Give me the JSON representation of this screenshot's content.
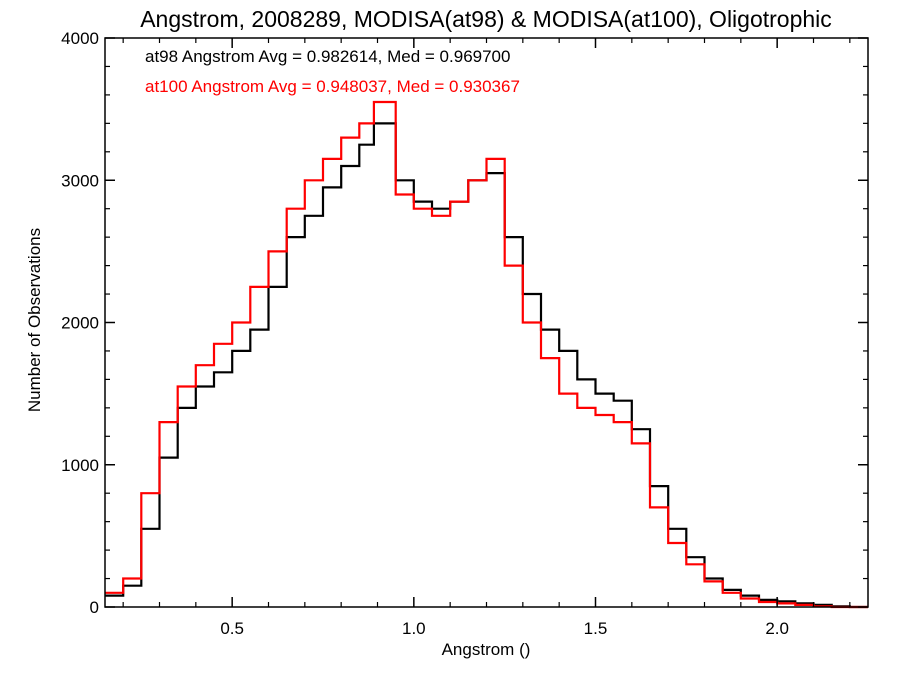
{
  "chart_data": {
    "type": "line",
    "title": "Angstrom, 2008289, MODISA(at98) & MODISA(at100), Oligotrophic",
    "xlabel": "Angstrom ()",
    "ylabel": "Number of Observations",
    "xlim": [
      0.15,
      2.25
    ],
    "ylim": [
      0,
      4000
    ],
    "x_ticks": [
      0.5,
      1.0,
      1.5,
      2.0
    ],
    "x_tick_labels": [
      "0.5",
      "1.0",
      "1.5",
      "2.0"
    ],
    "y_ticks": [
      0,
      1000,
      2000,
      3000,
      4000
    ],
    "y_tick_labels": [
      "0",
      "1000",
      "2000",
      "3000",
      "4000"
    ],
    "annotations": [
      "at98 Angstrom Avg = 0.982614, Med = 0.969700",
      "at100 Angstrom Avg = 0.948037, Med = 0.930367"
    ],
    "style": "step histogram",
    "grid": false,
    "series": [
      {
        "color": "#000000",
        "x": [
          0.15,
          0.2,
          0.25,
          0.3,
          0.35,
          0.4,
          0.45,
          0.5,
          0.55,
          0.6,
          0.65,
          0.7,
          0.75,
          0.8,
          0.85,
          0.89,
          0.95,
          1.0,
          1.05,
          1.1,
          1.15,
          1.2,
          1.25,
          1.3,
          1.35,
          1.4,
          1.45,
          1.5,
          1.55,
          1.6,
          1.65,
          1.7,
          1.75,
          1.8,
          1.85,
          1.9,
          1.95,
          2.0,
          2.05,
          2.1,
          2.15,
          2.2,
          2.25
        ],
        "y": [
          80,
          150,
          550,
          1050,
          1400,
          1550,
          1650,
          1800,
          1950,
          2250,
          2600,
          2750,
          2950,
          3100,
          3250,
          3400,
          3000,
          2850,
          2800,
          2850,
          3000,
          3050,
          2600,
          2200,
          1950,
          1800,
          1600,
          1500,
          1450,
          1250,
          850,
          550,
          350,
          200,
          120,
          80,
          50,
          40,
          25,
          15,
          5,
          0,
          0
        ]
      },
      {
        "color": "#ff0000",
        "x": [
          0.15,
          0.2,
          0.25,
          0.3,
          0.35,
          0.4,
          0.45,
          0.5,
          0.55,
          0.6,
          0.65,
          0.7,
          0.75,
          0.8,
          0.85,
          0.89,
          0.95,
          1.0,
          1.05,
          1.1,
          1.15,
          1.2,
          1.25,
          1.3,
          1.35,
          1.4,
          1.45,
          1.5,
          1.55,
          1.6,
          1.65,
          1.7,
          1.75,
          1.8,
          1.85,
          1.9,
          1.95,
          2.0,
          2.05,
          2.1,
          2.15,
          2.2,
          2.25
        ],
        "y": [
          100,
          200,
          800,
          1300,
          1550,
          1700,
          1850,
          2000,
          2250,
          2500,
          2800,
          3000,
          3150,
          3300,
          3400,
          3550,
          2900,
          2800,
          2750,
          2850,
          3000,
          3150,
          2400,
          2000,
          1750,
          1500,
          1400,
          1350,
          1300,
          1150,
          700,
          450,
          300,
          180,
          100,
          60,
          35,
          25,
          15,
          5,
          0,
          0,
          0
        ]
      }
    ]
  }
}
